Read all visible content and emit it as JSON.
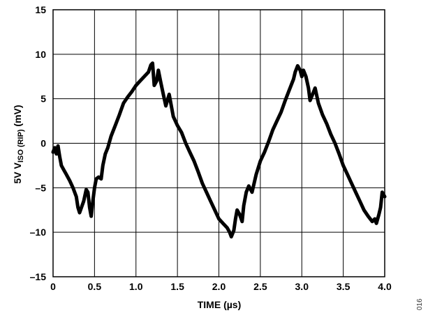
{
  "chart_data": {
    "type": "line",
    "title": "",
    "xlabel": "TIME (µs)",
    "ylabel_parts": {
      "main": "5V V",
      "sub": "ISO (RIP)",
      "unit": " (mV)"
    },
    "xlim": [
      0,
      4.0
    ],
    "ylim": [
      -15,
      15
    ],
    "x_ticks": [
      0,
      0.5,
      1.0,
      1.5,
      2.0,
      2.5,
      3.0,
      3.5,
      4.0
    ],
    "x_tick_labels": [
      "0",
      "0.5",
      "1.0",
      "1.5",
      "2.0",
      "2.5",
      "3.0",
      "3.5",
      "4.0"
    ],
    "y_ticks": [
      15,
      10,
      5,
      0,
      -5,
      -10,
      -15
    ],
    "y_tick_labels": [
      "15",
      "10",
      "5",
      "0",
      "–5",
      "–10",
      "–15"
    ],
    "grid": true,
    "legend": "none",
    "line_color": "#000000",
    "series": [
      {
        "x": [
          0.0,
          0.02,
          0.04,
          0.06,
          0.08,
          0.1,
          0.13,
          0.16,
          0.2,
          0.24,
          0.28,
          0.3,
          0.32,
          0.35,
          0.37,
          0.4,
          0.42,
          0.44,
          0.46,
          0.48,
          0.5,
          0.52,
          0.55,
          0.58,
          0.6,
          0.63,
          0.66,
          0.7,
          0.75,
          0.8,
          0.85,
          0.9,
          0.95,
          1.0,
          1.05,
          1.1,
          1.15,
          1.18,
          1.2,
          1.22,
          1.25,
          1.27,
          1.3,
          1.33,
          1.36,
          1.4,
          1.45,
          1.5,
          1.55,
          1.6,
          1.65,
          1.7,
          1.75,
          1.8,
          1.85,
          1.9,
          1.95,
          2.0,
          2.05,
          2.1,
          2.13,
          2.15,
          2.18,
          2.2,
          2.22,
          2.25,
          2.28,
          2.3,
          2.33,
          2.36,
          2.4,
          2.45,
          2.5,
          2.55,
          2.6,
          2.65,
          2.7,
          2.75,
          2.8,
          2.85,
          2.9,
          2.92,
          2.95,
          2.98,
          3.0,
          3.02,
          3.05,
          3.08,
          3.1,
          3.13,
          3.16,
          3.2,
          3.25,
          3.3,
          3.35,
          3.4,
          3.45,
          3.5,
          3.55,
          3.6,
          3.65,
          3.7,
          3.75,
          3.8,
          3.85,
          3.88,
          3.9,
          3.93,
          3.95,
          3.97,
          4.0
        ],
        "y": [
          -1.0,
          -0.5,
          -1.2,
          -0.3,
          -1.5,
          -2.5,
          -3.0,
          -3.5,
          -4.2,
          -5.0,
          -6.0,
          -7.2,
          -7.8,
          -7.0,
          -6.5,
          -5.2,
          -5.5,
          -7.2,
          -8.2,
          -6.5,
          -5.0,
          -4.0,
          -3.8,
          -4.0,
          -2.5,
          -1.2,
          -0.5,
          0.8,
          2.0,
          3.2,
          4.5,
          5.2,
          5.8,
          6.5,
          7.0,
          7.5,
          8.0,
          8.8,
          9.0,
          6.5,
          7.0,
          8.2,
          6.8,
          5.5,
          4.2,
          5.5,
          3.0,
          2.0,
          1.2,
          0.0,
          -1.0,
          -2.0,
          -3.2,
          -4.5,
          -5.5,
          -6.5,
          -7.5,
          -8.5,
          -9.0,
          -9.5,
          -10.0,
          -10.5,
          -9.8,
          -8.5,
          -7.5,
          -8.0,
          -8.8,
          -7.0,
          -5.5,
          -4.8,
          -5.5,
          -3.5,
          -2.0,
          -1.0,
          0.2,
          1.5,
          2.5,
          3.5,
          4.8,
          6.0,
          7.2,
          8.0,
          8.7,
          8.2,
          7.5,
          8.2,
          7.5,
          6.2,
          4.8,
          5.5,
          6.2,
          4.5,
          3.2,
          2.2,
          1.0,
          0.0,
          -1.2,
          -2.5,
          -3.5,
          -4.5,
          -5.5,
          -6.5,
          -7.5,
          -8.2,
          -8.8,
          -8.5,
          -9.0,
          -8.0,
          -7.2,
          -5.5,
          -6.0
        ]
      }
    ]
  },
  "figure_id": "016"
}
